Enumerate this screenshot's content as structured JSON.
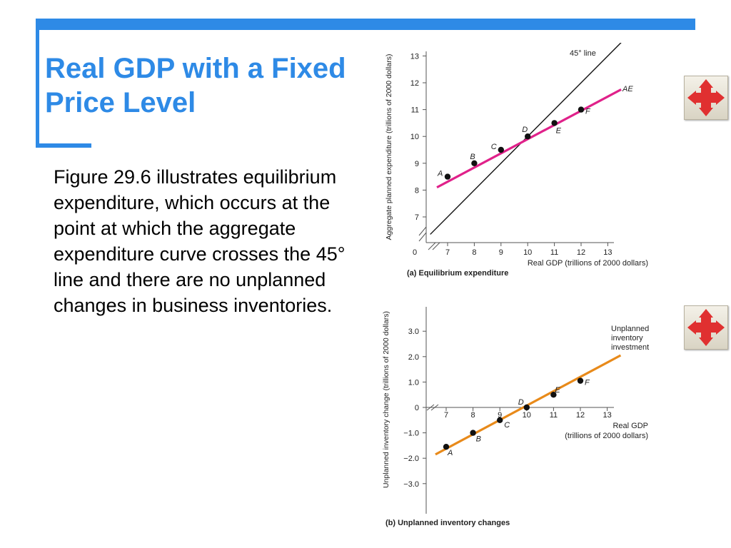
{
  "slide": {
    "title": "Real GDP with a Fixed Price Level",
    "body": "Figure 29.6 illustrates equilibrium expenditure, which occurs at the point at which the aggregate expenditure curve crosses the 45° line and there are no unplanned changes in business inventories."
  },
  "nav": {
    "icon": "four-way-arrows-icon",
    "color": "#e03030"
  },
  "colors": {
    "accent": "#2e8ae6",
    "ae_line": "#e0218a",
    "inventory_line": "#e88a1a"
  },
  "chart_data": [
    {
      "type": "line",
      "title": "(a) Equilibrium expenditure",
      "xlabel": "Real GDP (trillions of 2000 dollars)",
      "ylabel": "Aggregate planned expenditure (trillions of 2000 dollars)",
      "xlim": [
        6.3,
        14.2
      ],
      "ylim": [
        6.2,
        13.4
      ],
      "x_ticks": [
        7,
        8,
        9,
        10,
        11,
        12,
        13
      ],
      "y_ticks": [
        7,
        8,
        9,
        10,
        11,
        12,
        13
      ],
      "origin_label": "0",
      "axis_breaks": true,
      "series": [
        {
          "name": "45° line",
          "color": "#111111",
          "points": [
            [
              6.35,
              6.35
            ],
            [
              13.5,
              13.5
            ]
          ]
        },
        {
          "name": "AE",
          "color": "#e0218a",
          "points": [
            [
              6.6,
              8.1
            ],
            [
              13.5,
              11.75
            ]
          ]
        }
      ],
      "labeled_points": [
        {
          "label": "A",
          "x": 7,
          "y": 8.5
        },
        {
          "label": "B",
          "x": 8,
          "y": 9.0
        },
        {
          "label": "C",
          "x": 9,
          "y": 9.5
        },
        {
          "label": "D",
          "x": 10,
          "y": 10.0
        },
        {
          "label": "E",
          "x": 11,
          "y": 10.5
        },
        {
          "label": "F",
          "x": 12,
          "y": 11.0
        }
      ]
    },
    {
      "type": "line",
      "title": "(b) Unplanned inventory changes",
      "xlabel": "Real GDP (trillions of 2000 dollars)",
      "xlabel_line1": "Real GDP",
      "xlabel_line2": "(trillions of 2000 dollars)",
      "ylabel": "Unplanned inventory change (trillions of 2000 dollars)",
      "xlim": [
        6.3,
        14.2
      ],
      "ylim": [
        -3.4,
        3.6
      ],
      "x_ticks": [
        7,
        8,
        9,
        10,
        11,
        12,
        13
      ],
      "y_ticks": [
        3.0,
        2.0,
        1.0,
        0,
        -1.0,
        -2.0,
        -3.0
      ],
      "y_tick_labels": [
        "3.0",
        "2.0",
        "1.0",
        "0",
        "−1.0",
        "−2.0",
        "−3.0"
      ],
      "axis_breaks": true,
      "series": [
        {
          "name": "Unplanned inventory investment",
          "color": "#e88a1a",
          "points": [
            [
              6.6,
              -1.85
            ],
            [
              13.5,
              2.05
            ]
          ]
        }
      ],
      "series_label_lines": [
        "Unplanned",
        "inventory",
        "investment"
      ],
      "labeled_points": [
        {
          "label": "A",
          "x": 7,
          "y": -1.55
        },
        {
          "label": "B",
          "x": 8,
          "y": -1.0
        },
        {
          "label": "C",
          "x": 9,
          "y": -0.5
        },
        {
          "label": "D",
          "x": 10,
          "y": 0
        },
        {
          "label": "E",
          "x": 11,
          "y": 0.5
        },
        {
          "label": "F",
          "x": 12,
          "y": 1.05
        }
      ]
    }
  ]
}
